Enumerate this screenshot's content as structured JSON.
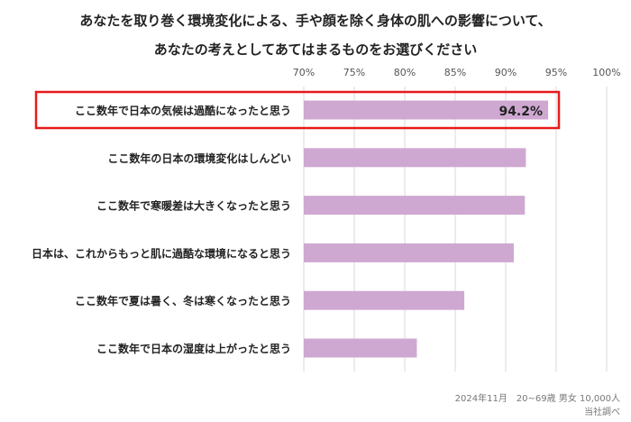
{
  "chart_data": {
    "type": "bar",
    "orientation": "horizontal",
    "title": "あなたを取り巻く環境変化による、手や顔を除く身体の肌への影響について、",
    "subtitle": "あなたの考えとしてあてはまるものをお選びください",
    "categories": [
      "ここ数年で日本の気候は過酷になったと思う",
      "ここ数年の日本の環境変化はしんどい",
      "ここ数年で寒暖差は大きくなったと思う",
      "日本は、これからもっと肌に過酷な環境になると思う",
      "ここ数年で夏は暑く、冬は寒くなったと思う",
      "ここ数年で日本の湿度は上がったと思う"
    ],
    "values": [
      94.2,
      92.0,
      91.9,
      90.8,
      85.9,
      81.2
    ],
    "data_labels": [
      "94.2%",
      null,
      null,
      null,
      null,
      null
    ],
    "highlight_index": 0,
    "xlim": [
      70,
      100
    ],
    "ticks": [
      70,
      75,
      80,
      85,
      90,
      95,
      100
    ],
    "tick_labels": [
      "70%",
      "75%",
      "80%",
      "85%",
      "90%",
      "95%",
      "100%"
    ],
    "tick_position": "top",
    "grid": true,
    "legend": "none",
    "xlabel": "",
    "ylabel": "",
    "colors": {
      "bar": "#cfa8d2",
      "highlight_border": "#e8191c",
      "grid": "#d9d9d9",
      "text": "#222222"
    }
  },
  "footnote": {
    "line1": "2024年11月　20~69歳 男女 10,000人",
    "line2": "当社調べ"
  }
}
